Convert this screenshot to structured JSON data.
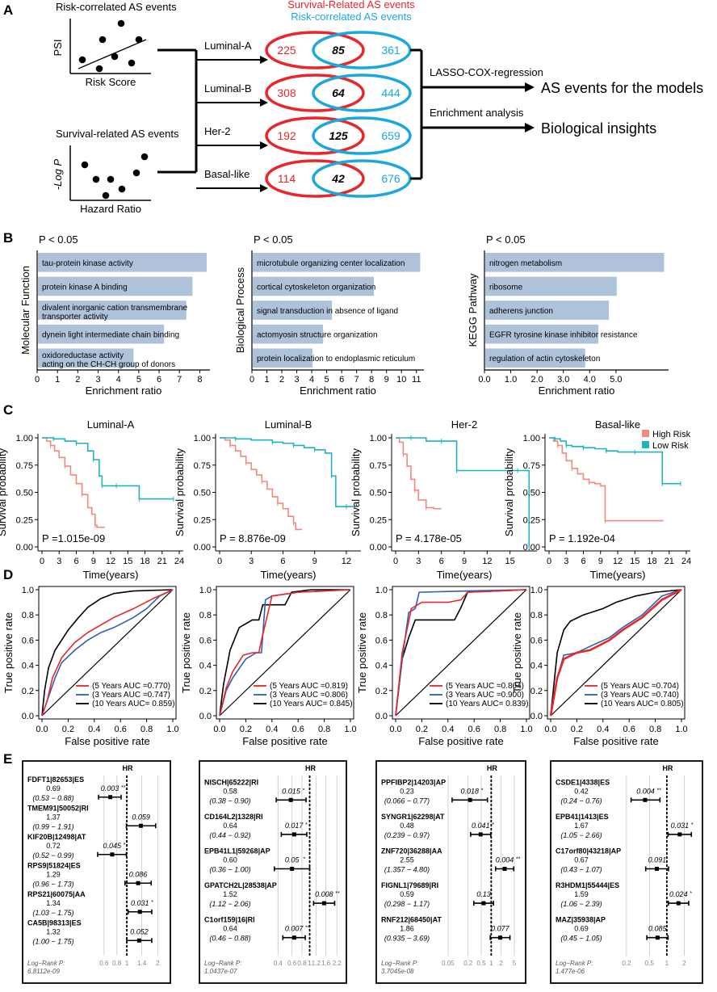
{
  "panelA": {
    "letter": "A",
    "scatter1": {
      "title": "Risk-correlated AS events",
      "ylabel": "PSI",
      "xlabel": "Risk Score"
    },
    "scatter2": {
      "title": "Survival-related AS events",
      "ylabel": "-Log P",
      "xlabel": "Hazard Ratio"
    },
    "legend": {
      "survival": "Survival-Related AS events",
      "risk": "Risk-correlated AS events"
    },
    "colors": {
      "red": "#e8262b",
      "blue": "#1ba8e0"
    },
    "venns": [
      {
        "subtype": "Luminal-A",
        "left": "225",
        "center": "85",
        "right": "361"
      },
      {
        "subtype": "Luminal-B",
        "left": "308",
        "center": "64",
        "right": "444"
      },
      {
        "subtype": "Her-2",
        "left": "192",
        "center": "125",
        "right": "659"
      },
      {
        "subtype": "Basal-like",
        "left": "114",
        "center": "42",
        "right": "676"
      }
    ],
    "methods": [
      "LASSO-COX-regression",
      "Enrichment analysis"
    ],
    "outcomes": [
      "AS events for the models",
      "Biological insights"
    ]
  },
  "panelB": {
    "letter": "B",
    "bar_color": "#aec3da",
    "pnote": "P < 0.05",
    "charts": [
      {
        "ylabel": "Molecular Function",
        "xlabel": "Enrichment ratio",
        "ticks": [
          "0",
          "1",
          "2",
          "3",
          "4",
          "5",
          "6",
          "7",
          "8"
        ],
        "xmax": 8.5,
        "bars": [
          {
            "label": "tau-protein kinase activity",
            "value": 8.3
          },
          {
            "label": "protein kinase A binding",
            "value": 7.6
          },
          {
            "label": "divalent inorganic cation transmembrane",
            "label2": "transporter activity",
            "value": 7.3
          },
          {
            "label": "dynein light intermediate chain binding",
            "value": 6.2
          },
          {
            "label": "oxidoreductase activity",
            "label2": "acting on the CH-CH group of donors",
            "value": 4.7
          }
        ]
      },
      {
        "ylabel": "Biological Process",
        "xlabel": "Enrichment ratio",
        "ticks": [
          "0",
          "1",
          "2",
          "3",
          "4",
          "5",
          "6",
          "7",
          "8",
          "9",
          "10",
          "11"
        ],
        "xmax": 11.5,
        "bars": [
          {
            "label": "microtubule organizing center localization",
            "value": 11.2
          },
          {
            "label": "cortical cytoskeleton organization",
            "value": 8.1
          },
          {
            "label": "signal transduction in absence of ligand",
            "value": 5.3
          },
          {
            "label": "actomyosin structure organization",
            "value": 4.7
          },
          {
            "label": "protein localization to endoplasmic reticulum",
            "value": 4.0
          }
        ]
      },
      {
        "ylabel": "KEGG  Pathway",
        "xlabel": "Enrichment ratio",
        "ticks": [
          "0.0",
          "1.0",
          "2.0",
          "3.0",
          "4.0",
          "5.0"
        ],
        "xmax": 7.0,
        "bars": [
          {
            "label": "nitrogen metabolism",
            "value": 6.8
          },
          {
            "label": "ribosome",
            "value": 5.0
          },
          {
            "label": "adherens junction",
            "value": 4.7
          },
          {
            "label": "EGFR tyrosine kinase inhibitor resistance",
            "value": 4.3
          },
          {
            "label": "regulation of actin cytoskeleton",
            "value": 3.8
          }
        ]
      }
    ]
  },
  "panelC": {
    "letter": "C",
    "ylabel": "Survival probability",
    "xlabel": "Time(years)",
    "yticks": [
      "0.00",
      "0.25",
      "0.50",
      "0.75",
      "1.00"
    ],
    "legend": {
      "high": "High Risk",
      "low": "Low Risk",
      "high_color": "#f08a7e",
      "low_color": "#1db4bf"
    },
    "plots": [
      {
        "title": "Luminal-A",
        "pvalue": "P =1.015e-09",
        "xticks": [
          "0",
          "3",
          "6",
          "9",
          "12",
          "15",
          "18",
          "21",
          "24"
        ],
        "xmax": 24
      },
      {
        "title": "Luminal-B",
        "pvalue": "P = 8.876e-09",
        "xticks": [
          "0",
          "3",
          "6",
          "9",
          "12"
        ],
        "xmax": 13
      },
      {
        "title": "Her-2",
        "pvalue": "P = 4.178e-05",
        "xticks": [
          "0",
          "3",
          "6",
          "9",
          "12",
          "15"
        ],
        "xmax": 18
      },
      {
        "title": "Basal-like",
        "pvalue": "P = 1.192e-04",
        "xticks": [
          "0",
          "3",
          "6",
          "9",
          "12",
          "15",
          "18",
          "21",
          "24"
        ],
        "xmax": 24
      }
    ]
  },
  "panelD": {
    "letter": "D",
    "ylabel": "True positive rate",
    "xlabel": "False positive rate",
    "ticks": [
      "0.0",
      "0.2",
      "0.4",
      "0.6",
      "0.8",
      "1.0"
    ],
    "colors": {
      "y5": "#e8262b",
      "y3": "#2c5fb8",
      "y10": "#000000"
    },
    "plots": [
      {
        "legend": [
          "(5 Years AUC =0.770)",
          "(3 Years AUC =0.747)",
          "(10 Years AUC= 0.859)"
        ]
      },
      {
        "legend": [
          "(5 Years AUC =0.819)",
          "(3 Years AUC =0.806)",
          "(10 Years AUC= 0.845)"
        ]
      },
      {
        "legend": [
          "(5 Years AUC =0.864)",
          "(3 Years AUC =0.900)",
          "(10 Years AUC= 0.839)"
        ]
      },
      {
        "legend": [
          "(5 Years AUC =0.704)",
          "(3 Years AUC =0.740)",
          "(10 Years AUC= 0.805)"
        ]
      }
    ]
  },
  "panelE": {
    "letter": "E",
    "hr_label": "HR",
    "logrank_label": "Log−Rank P:",
    "plots": [
      {
        "logrank": "6.8112e-09",
        "xticks": [
          "0.6",
          "0.8",
          "1",
          "1.4",
          "2"
        ],
        "rows": [
          {
            "name": "FDFT1|82653|ES",
            "hr": "0.69",
            "ci": "(0.53 − 0.88)",
            "p": "0.003",
            "sig": "**",
            "est": 0.69,
            "lo": 0.53,
            "hi": 0.88
          },
          {
            "name": "TMEM91|50052|RI",
            "hr": "1.37",
            "ci": "(0.99 − 1.91)",
            "p": "0.059",
            "sig": "",
            "est": 1.37,
            "lo": 0.99,
            "hi": 1.91
          },
          {
            "name": "KIF20B|12498|AT",
            "hr": "0.72",
            "ci": "(0.52 − 0.99)",
            "p": "0.045",
            "sig": "*",
            "est": 0.72,
            "lo": 0.52,
            "hi": 0.99
          },
          {
            "name": "RPS9|51824|ES",
            "hr": "1.29",
            "ci": "(0.96 − 1.73)",
            "p": "0.086",
            "sig": "",
            "est": 1.29,
            "lo": 0.96,
            "hi": 1.73
          },
          {
            "name": "RPS21|60075|AA",
            "hr": "1.34",
            "ci": "(1.03 − 1.75)",
            "p": "0.031",
            "sig": "*",
            "est": 1.34,
            "lo": 1.03,
            "hi": 1.75
          },
          {
            "name": "CA5B|98313|ES",
            "hr": "1.32",
            "ci": "(1.00 − 1.75)",
            "p": "0.052",
            "sig": "",
            "est": 1.32,
            "lo": 1.0,
            "hi": 1.75
          }
        ]
      },
      {
        "logrank": "1.0437e-07",
        "xticks": [
          "0.4",
          "0.6",
          "0.8",
          "1",
          "1.2",
          "1.6",
          "2.2"
        ],
        "rows": [
          {
            "name": "NISCH|65222|RI",
            "hr": "0.58",
            "ci": "(0.38 − 0.90)",
            "p": "0.015",
            "sig": "*",
            "est": 0.58,
            "lo": 0.38,
            "hi": 0.9
          },
          {
            "name": "CD164L2|1328|RI",
            "hr": "0.64",
            "ci": "(0.44 − 0.92)",
            "p": "0.017",
            "sig": "*",
            "est": 0.64,
            "lo": 0.44,
            "hi": 0.92
          },
          {
            "name": "EPB41L1|59268|AP",
            "hr": "0.60",
            "ci": "(0.36 − 1.00)",
            "p": "0.05",
            "sig": "*",
            "est": 0.6,
            "lo": 0.36,
            "hi": 1.0
          },
          {
            "name": "GPATCH2L|28538|AP",
            "hr": "1.52",
            "ci": "(1.12 − 2.06)",
            "p": "0.008",
            "sig": "**",
            "est": 1.52,
            "lo": 1.12,
            "hi": 2.06
          },
          {
            "name": "C1orf159|16|RI",
            "hr": "0.64",
            "ci": "(0.46 − 0.88)",
            "p": "0.007",
            "sig": "**",
            "est": 0.64,
            "lo": 0.46,
            "hi": 0.88
          }
        ]
      },
      {
        "logrank": "3.7045e-08",
        "xticks": [
          "0.05",
          "0.2",
          "0.5",
          "1",
          "2",
          "5"
        ],
        "rows": [
          {
            "name": "PPFIBP2|14203|AP",
            "hr": "0.23",
            "ci": "(0.066 − 0.77)",
            "p": "0.018",
            "sig": "*",
            "est": 0.23,
            "lo": 0.066,
            "hi": 0.77
          },
          {
            "name": "SYNGR1|62298|AT",
            "hr": "0.48",
            "ci": "(0.239 − 0.97)",
            "p": "0.041",
            "sig": "*",
            "est": 0.48,
            "lo": 0.239,
            "hi": 0.97
          },
          {
            "name": "ZNF720|36288|AA",
            "hr": "2.55",
            "ci": "(1.357 − 4.80)",
            "p": "0.004",
            "sig": "**",
            "est": 2.55,
            "lo": 1.357,
            "hi": 4.8
          },
          {
            "name": "FIGNL1|79689|RI",
            "hr": "0.59",
            "ci": "(0.298 − 1.17)",
            "p": "0.13",
            "sig": "",
            "est": 0.59,
            "lo": 0.298,
            "hi": 1.17
          },
          {
            "name": "RNF212|68450|AT",
            "hr": "1.86",
            "ci": "(0.935 − 3.69)",
            "p": "0.077",
            "sig": "",
            "est": 1.86,
            "lo": 0.935,
            "hi": 3.69
          }
        ]
      },
      {
        "logrank": "1.477e-06",
        "xticks": [
          "0.2",
          "0.5",
          "1",
          "2"
        ],
        "rows": [
          {
            "name": "CSDE1|4338|ES",
            "hr": "0.42",
            "ci": "(0.24 − 0.76)",
            "p": "0.004",
            "sig": "**",
            "est": 0.42,
            "lo": 0.24,
            "hi": 0.76
          },
          {
            "name": "EPB41|1413|ES",
            "hr": "1.67",
            "ci": "(1.05 − 2.66)",
            "p": "0.031",
            "sig": "*",
            "est": 1.67,
            "lo": 1.05,
            "hi": 2.66
          },
          {
            "name": "C17orf80|43218|AP",
            "hr": "0.67",
            "ci": "(0.43 − 1.07)",
            "p": "0.091",
            "sig": "",
            "est": 0.67,
            "lo": 0.43,
            "hi": 1.07
          },
          {
            "name": "R3HDM1|55444|ES",
            "hr": "1.59",
            "ci": "(1.06 − 2.39)",
            "p": "0.024",
            "sig": "*",
            "est": 1.59,
            "lo": 1.06,
            "hi": 2.39
          },
          {
            "name": "MAZ|35938|AP",
            "hr": "0.69",
            "ci": "(0.45 − 1.05)",
            "p": "0.085",
            "sig": "",
            "est": 0.69,
            "lo": 0.45,
            "hi": 1.05
          }
        ]
      }
    ]
  }
}
